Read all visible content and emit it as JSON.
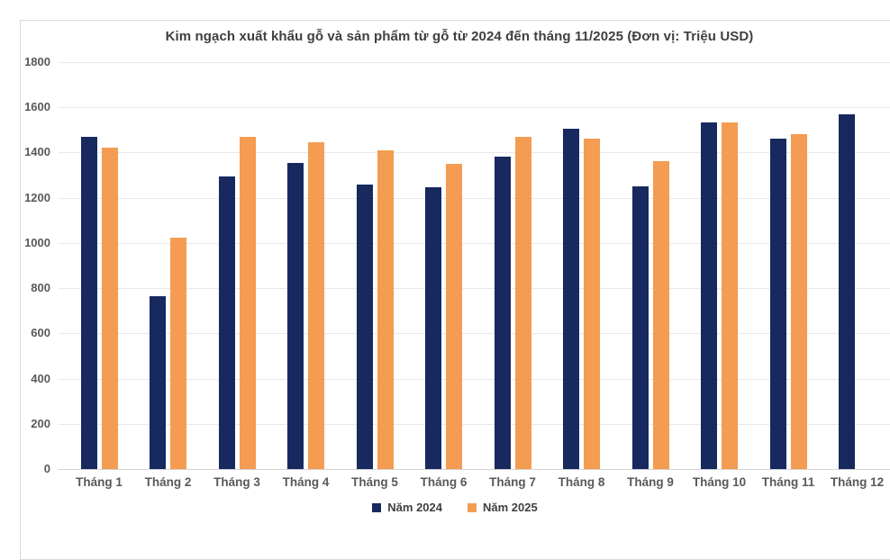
{
  "chart_data": {
    "type": "bar",
    "title": "Kim ngạch xuất khẩu gỗ và sản phẩm từ gỗ từ 2024 đến tháng 11/2025 (Đơn vị: Triệu USD)",
    "xlabel": "",
    "ylabel": "",
    "unit": "Triệu USD",
    "categories": [
      "Tháng 1",
      "Tháng 2",
      "Tháng 3",
      "Tháng 4",
      "Tháng 5",
      "Tháng 6",
      "Tháng 7",
      "Tháng 8",
      "Tháng 9",
      "Tháng 10",
      "Tháng 11",
      "Tháng 12"
    ],
    "series": [
      {
        "name": "Năm 2024",
        "color": "#17295e",
        "values": [
          1470,
          765,
          1295,
          1355,
          1260,
          1245,
          1380,
          1505,
          1250,
          1535,
          1460,
          1570
        ]
      },
      {
        "name": "Năm 2025",
        "color": "#f39c52",
        "values": [
          1420,
          1025,
          1470,
          1445,
          1410,
          1350,
          1470,
          1460,
          1360,
          1535,
          1480,
          null
        ]
      }
    ],
    "ylim": [
      0,
      1800
    ],
    "yticks": [
      0,
      200,
      400,
      600,
      800,
      1000,
      1200,
      1400,
      1600,
      1800
    ],
    "ytick_labels": [
      "0",
      "200",
      "400",
      "600",
      "800",
      "1000",
      "1200",
      "1400",
      "1600",
      "1800"
    ],
    "grid": true,
    "legend_position": "bottom"
  },
  "colors": {
    "background": "#ffffff",
    "frame_border": "#d9d9d9",
    "gridline": "#e8e8e8",
    "axis_line": "#d4d4d4",
    "title_text": "#3f3f3f",
    "tick_text": "#595959",
    "legend_text": "#404040",
    "series_2024": "#17295e",
    "series_2025": "#f39c52"
  }
}
